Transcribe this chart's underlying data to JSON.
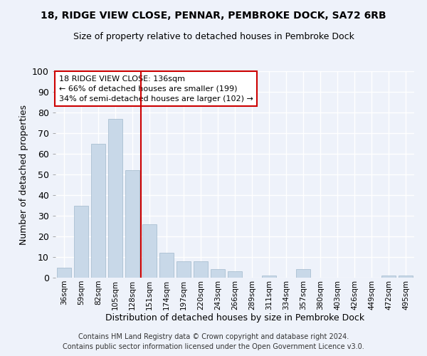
{
  "title1": "18, RIDGE VIEW CLOSE, PENNAR, PEMBROKE DOCK, SA72 6RB",
  "title2": "Size of property relative to detached houses in Pembroke Dock",
  "xlabel": "Distribution of detached houses by size in Pembroke Dock",
  "ylabel": "Number of detached properties",
  "categories": [
    "36sqm",
    "59sqm",
    "82sqm",
    "105sqm",
    "128sqm",
    "151sqm",
    "174sqm",
    "197sqm",
    "220sqm",
    "243sqm",
    "266sqm",
    "289sqm",
    "311sqm",
    "334sqm",
    "357sqm",
    "380sqm",
    "403sqm",
    "426sqm",
    "449sqm",
    "472sqm",
    "495sqm"
  ],
  "values": [
    5,
    35,
    65,
    77,
    52,
    26,
    12,
    8,
    8,
    4,
    3,
    0,
    1,
    0,
    4,
    0,
    0,
    0,
    0,
    1,
    1
  ],
  "bar_color": "#c8d8e8",
  "bar_edgecolor": "#a0b8cc",
  "vline_x": 4.5,
  "vline_color": "#cc0000",
  "annotation_text": "18 RIDGE VIEW CLOSE: 136sqm\n← 66% of detached houses are smaller (199)\n34% of semi-detached houses are larger (102) →",
  "annotation_box_color": "white",
  "annotation_box_edgecolor": "#cc0000",
  "ylim": [
    0,
    100
  ],
  "footer1": "Contains HM Land Registry data © Crown copyright and database right 2024.",
  "footer2": "Contains public sector information licensed under the Open Government Licence v3.0.",
  "background_color": "#eef2fa",
  "grid_color": "white"
}
